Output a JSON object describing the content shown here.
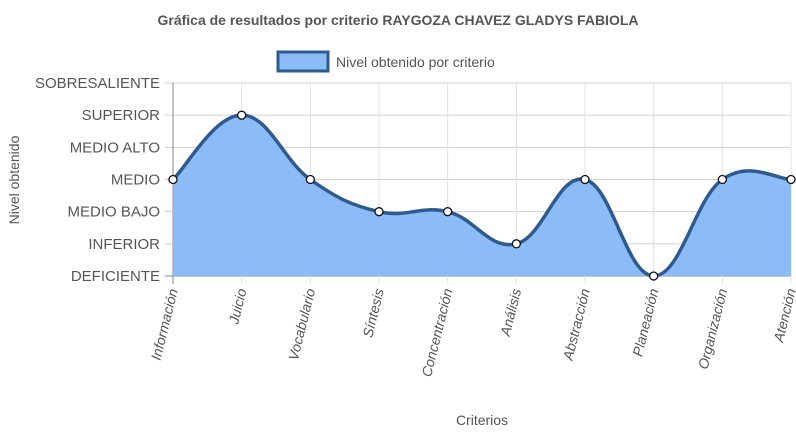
{
  "chart_data": {
    "type": "area",
    "title": "Gráfica de resultados por criterio RAYGOZA CHAVEZ GLADYS FABIOLA",
    "xlabel": "Criterios",
    "ylabel": "Nivel obtenido",
    "y_levels": [
      "DEFICIENTE",
      "INFERIOR",
      "MEDIO BAJO",
      "MEDIO",
      "MEDIO ALTO",
      "SUPERIOR",
      "SOBRESALIENTE"
    ],
    "categories": [
      "Información",
      "Juicio",
      "Vocabulario",
      "Síntesis",
      "Concentración",
      "Análisis",
      "Abstracción",
      "Planeación",
      "Organización",
      "Atención"
    ],
    "series": [
      {
        "name": "Nivel obtenido por criterio",
        "values": [
          "MEDIO",
          "SUPERIOR",
          "MEDIO",
          "MEDIO BAJO",
          "MEDIO BAJO",
          "INFERIOR",
          "MEDIO",
          "DEFICIENTE",
          "MEDIO",
          "MEDIO"
        ],
        "fill_color": "#8bbcf7",
        "line_color": "#2f5a8e"
      }
    ],
    "grid": true,
    "legend_position": "top"
  }
}
